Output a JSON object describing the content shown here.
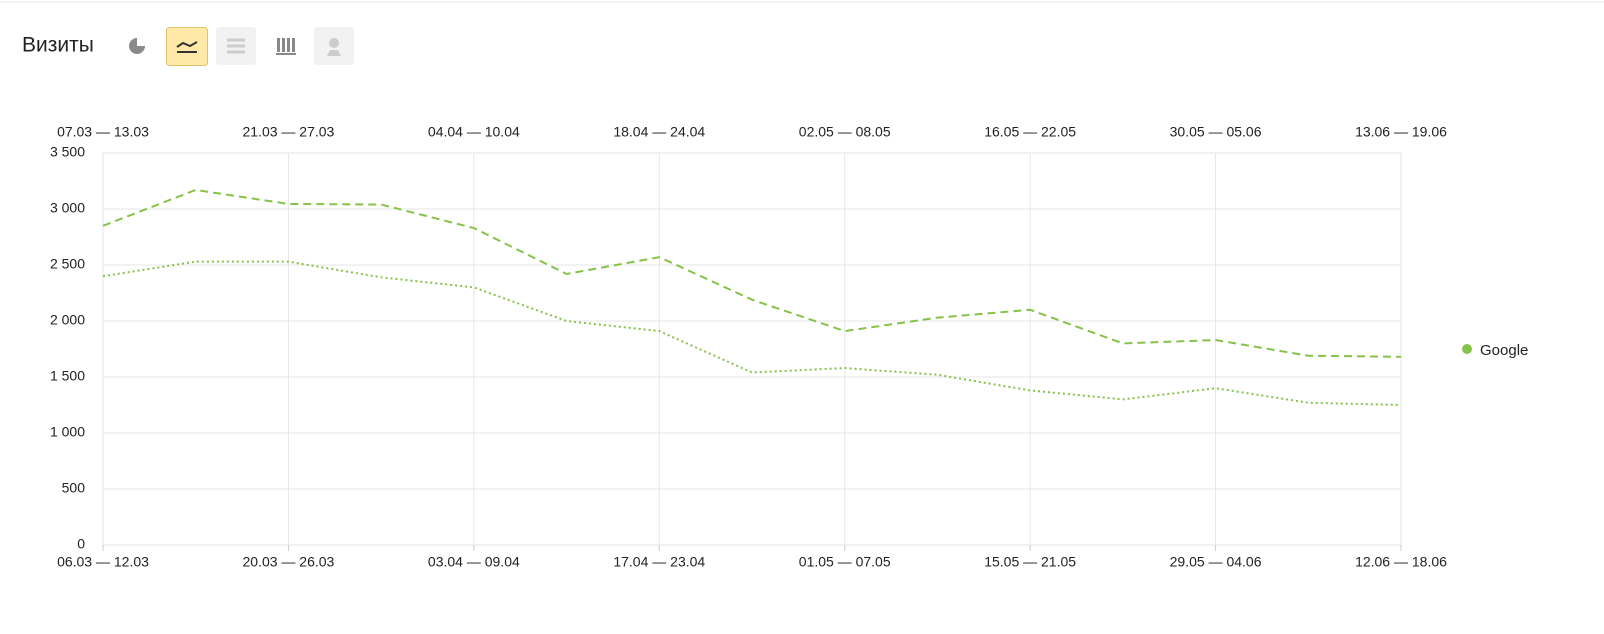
{
  "header": {
    "title": "Визиты"
  },
  "chart_data": {
    "type": "line",
    "top_categories": [
      "07.03 — 13.03",
      null,
      "21.03 — 27.03",
      null,
      "04.04 — 10.04",
      null,
      "18.04 — 24.04",
      null,
      "02.05 — 08.05",
      null,
      "16.05 — 22.05",
      null,
      "30.05 — 05.06",
      null,
      "13.06 — 19.06"
    ],
    "categories": [
      "06.03 — 12.03",
      null,
      "20.03 — 26.03",
      null,
      "03.04 — 09.04",
      null,
      "17.04 — 23.04",
      null,
      "01.05 — 07.05",
      null,
      "15.05 — 21.05",
      null,
      "29.05 — 04.06",
      null,
      "12.06 — 18.06"
    ],
    "series": [
      {
        "name": "Google",
        "color": "#86c24a",
        "dash": "8 5",
        "values": [
          2850,
          3170,
          3045,
          3040,
          2830,
          2420,
          2570,
          2190,
          1910,
          2030,
          2100,
          1800,
          1830,
          1690,
          1680
        ]
      },
      {
        "color": "#86c24a",
        "dash": "2 3",
        "values": [
          2400,
          2530,
          2530,
          2390,
          2300,
          2000,
          1910,
          1540,
          1580,
          1520,
          1380,
          1300,
          1400,
          1270,
          1250
        ]
      }
    ],
    "ylim": [
      0,
      3500
    ],
    "yticks": [
      0,
      500,
      {
        "value": 1000,
        "label": "1 000"
      },
      {
        "value": 1500,
        "label": "1 500"
      },
      {
        "value": 2000,
        "label": "2 000"
      },
      {
        "value": 2500,
        "label": "2 500"
      },
      {
        "value": 3000,
        "label": "3 000"
      },
      {
        "value": 3500,
        "label": "3 500"
      }
    ],
    "grid": true
  }
}
